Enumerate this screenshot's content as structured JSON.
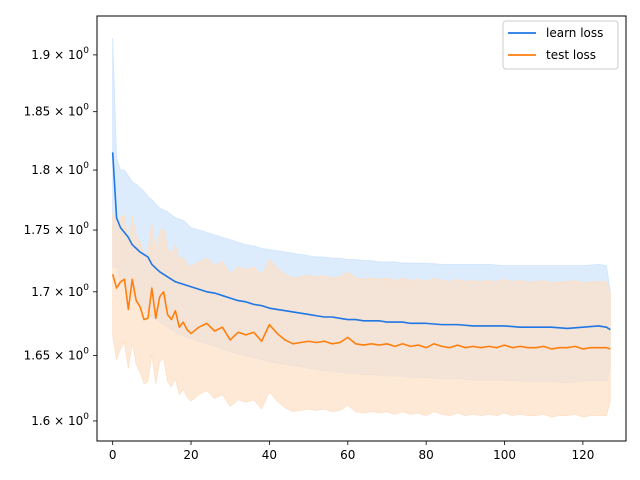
{
  "chart_data": {
    "type": "line",
    "title": "",
    "xlabel": "",
    "ylabel": "",
    "y_scale": "log",
    "xlim": [
      -4,
      131
    ],
    "ylim": [
      1.585,
      1.935
    ],
    "x_ticks": [
      0,
      20,
      40,
      60,
      80,
      100,
      120
    ],
    "x_tick_labels": [
      "0",
      "20",
      "40",
      "60",
      "80",
      "100",
      "120"
    ],
    "y_ticks": [
      1.6,
      1.65,
      1.7,
      1.75,
      1.8,
      1.85,
      1.9
    ],
    "y_tick_mantissas": [
      "1.6",
      "1.65",
      "1.7",
      "1.75",
      "1.8",
      "1.85",
      "1.9"
    ],
    "y_tick_base": "10",
    "y_tick_exponent": "0",
    "grid": false,
    "legend_position": "top-right",
    "series": [
      {
        "name": "learn loss",
        "color": "#1f77e4",
        "band_color": "#cfe4fc",
        "x": [
          0,
          1,
          2,
          3,
          4,
          5,
          6,
          7,
          8,
          9,
          10,
          12,
          14,
          16,
          18,
          20,
          22,
          24,
          26,
          28,
          30,
          32,
          34,
          36,
          38,
          40,
          42,
          44,
          46,
          48,
          50,
          52,
          54,
          56,
          58,
          60,
          62,
          64,
          66,
          68,
          70,
          72,
          74,
          76,
          78,
          80,
          84,
          88,
          92,
          96,
          100,
          104,
          108,
          112,
          116,
          120,
          124,
          126,
          127
        ],
        "values": [
          1.815,
          1.76,
          1.752,
          1.748,
          1.744,
          1.738,
          1.735,
          1.732,
          1.73,
          1.728,
          1.722,
          1.716,
          1.712,
          1.708,
          1.706,
          1.704,
          1.702,
          1.7,
          1.699,
          1.697,
          1.695,
          1.693,
          1.692,
          1.69,
          1.689,
          1.687,
          1.686,
          1.685,
          1.684,
          1.683,
          1.682,
          1.681,
          1.68,
          1.68,
          1.679,
          1.678,
          1.678,
          1.677,
          1.677,
          1.677,
          1.676,
          1.676,
          1.676,
          1.675,
          1.675,
          1.675,
          1.674,
          1.674,
          1.673,
          1.673,
          1.673,
          1.672,
          1.672,
          1.672,
          1.671,
          1.672,
          1.673,
          1.672,
          1.67
        ],
        "upper": [
          1.915,
          1.81,
          1.8,
          1.8,
          1.795,
          1.79,
          1.788,
          1.785,
          1.782,
          1.778,
          1.775,
          1.768,
          1.765,
          1.76,
          1.758,
          1.752,
          1.75,
          1.748,
          1.746,
          1.744,
          1.742,
          1.74,
          1.738,
          1.737,
          1.735,
          1.734,
          1.733,
          1.732,
          1.731,
          1.73,
          1.729,
          1.728,
          1.728,
          1.727,
          1.727,
          1.726,
          1.726,
          1.725,
          1.725,
          1.724,
          1.724,
          1.724,
          1.723,
          1.723,
          1.723,
          1.723,
          1.722,
          1.722,
          1.722,
          1.722,
          1.721,
          1.721,
          1.721,
          1.721,
          1.721,
          1.721,
          1.722,
          1.721,
          1.7
        ],
        "lower": [
          1.72,
          1.72,
          1.71,
          1.705,
          1.7,
          1.697,
          1.694,
          1.69,
          1.687,
          1.684,
          1.68,
          1.676,
          1.672,
          1.668,
          1.665,
          1.663,
          1.661,
          1.659,
          1.657,
          1.655,
          1.653,
          1.651,
          1.65,
          1.648,
          1.647,
          1.645,
          1.644,
          1.643,
          1.642,
          1.641,
          1.64,
          1.639,
          1.638,
          1.638,
          1.637,
          1.636,
          1.636,
          1.635,
          1.635,
          1.635,
          1.634,
          1.634,
          1.634,
          1.633,
          1.633,
          1.633,
          1.632,
          1.632,
          1.631,
          1.631,
          1.631,
          1.63,
          1.63,
          1.63,
          1.629,
          1.63,
          1.631,
          1.63,
          1.64
        ]
      },
      {
        "name": "test loss",
        "color": "#ff7f0e",
        "band_color": "#fde0c6",
        "x": [
          0,
          1,
          2,
          3,
          4,
          5,
          6,
          7,
          8,
          9,
          10,
          11,
          12,
          13,
          14,
          15,
          16,
          17,
          18,
          19,
          20,
          22,
          24,
          26,
          28,
          30,
          32,
          34,
          36,
          38,
          40,
          42,
          44,
          46,
          48,
          50,
          52,
          54,
          56,
          58,
          60,
          62,
          64,
          66,
          68,
          70,
          72,
          74,
          76,
          78,
          80,
          82,
          84,
          86,
          88,
          90,
          92,
          94,
          96,
          98,
          100,
          102,
          104,
          106,
          108,
          110,
          112,
          114,
          116,
          118,
          120,
          122,
          124,
          126,
          127
        ],
        "values": [
          1.714,
          1.703,
          1.708,
          1.71,
          1.686,
          1.71,
          1.693,
          1.688,
          1.678,
          1.679,
          1.703,
          1.679,
          1.696,
          1.7,
          1.682,
          1.678,
          1.685,
          1.672,
          1.676,
          1.67,
          1.667,
          1.672,
          1.675,
          1.669,
          1.672,
          1.662,
          1.668,
          1.666,
          1.668,
          1.661,
          1.674,
          1.667,
          1.662,
          1.659,
          1.66,
          1.661,
          1.66,
          1.661,
          1.659,
          1.66,
          1.664,
          1.659,
          1.658,
          1.659,
          1.658,
          1.659,
          1.657,
          1.659,
          1.657,
          1.658,
          1.656,
          1.659,
          1.657,
          1.656,
          1.658,
          1.656,
          1.657,
          1.656,
          1.657,
          1.656,
          1.658,
          1.656,
          1.657,
          1.656,
          1.656,
          1.657,
          1.655,
          1.656,
          1.656,
          1.657,
          1.655,
          1.656,
          1.656,
          1.656,
          1.655
        ],
        "upper": [
          1.765,
          1.755,
          1.76,
          1.762,
          1.74,
          1.762,
          1.745,
          1.74,
          1.73,
          1.732,
          1.755,
          1.732,
          1.748,
          1.752,
          1.735,
          1.73,
          1.738,
          1.725,
          1.728,
          1.722,
          1.72,
          1.724,
          1.727,
          1.721,
          1.724,
          1.714,
          1.72,
          1.718,
          1.72,
          1.713,
          1.726,
          1.719,
          1.714,
          1.711,
          1.712,
          1.713,
          1.712,
          1.713,
          1.711,
          1.712,
          1.716,
          1.711,
          1.71,
          1.711,
          1.71,
          1.711,
          1.709,
          1.711,
          1.709,
          1.71,
          1.708,
          1.711,
          1.709,
          1.708,
          1.71,
          1.708,
          1.709,
          1.708,
          1.709,
          1.708,
          1.71,
          1.708,
          1.709,
          1.708,
          1.708,
          1.709,
          1.707,
          1.708,
          1.708,
          1.709,
          1.707,
          1.708,
          1.708,
          1.708,
          1.7
        ],
        "lower": [
          1.665,
          1.647,
          1.655,
          1.66,
          1.64,
          1.66,
          1.643,
          1.637,
          1.628,
          1.63,
          1.651,
          1.628,
          1.645,
          1.648,
          1.63,
          1.626,
          1.632,
          1.62,
          1.624,
          1.618,
          1.615,
          1.62,
          1.623,
          1.617,
          1.62,
          1.611,
          1.616,
          1.614,
          1.616,
          1.609,
          1.622,
          1.615,
          1.61,
          1.607,
          1.608,
          1.609,
          1.608,
          1.609,
          1.607,
          1.608,
          1.612,
          1.607,
          1.606,
          1.607,
          1.606,
          1.607,
          1.605,
          1.607,
          1.605,
          1.606,
          1.604,
          1.607,
          1.605,
          1.604,
          1.606,
          1.604,
          1.605,
          1.604,
          1.605,
          1.604,
          1.606,
          1.604,
          1.605,
          1.604,
          1.604,
          1.605,
          1.603,
          1.604,
          1.604,
          1.605,
          1.603,
          1.604,
          1.604,
          1.604,
          1.615
        ]
      }
    ]
  }
}
